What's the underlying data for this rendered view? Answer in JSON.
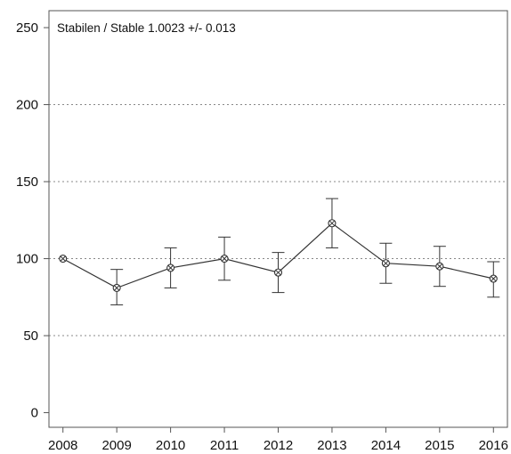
{
  "chart_data": {
    "type": "line",
    "title": "",
    "xlabel": "",
    "ylabel": "",
    "annotation": "Stabilen / Stable  1.0023 +/- 0.013",
    "x": [
      2008,
      2009,
      2010,
      2011,
      2012,
      2013,
      2014,
      2015,
      2016
    ],
    "x_tick_labels": [
      "2008",
      "2009",
      "2010",
      "2011",
      "2012",
      "2013",
      "2014",
      "2015",
      "2016"
    ],
    "y_ticks": [
      0,
      50,
      100,
      150,
      200,
      250
    ],
    "y_tick_labels": [
      "0",
      "50",
      "100",
      "150",
      "200",
      "250"
    ],
    "ylim": [
      0,
      250
    ],
    "grid": "horizontal dotted at 50, 100, 150, 200",
    "series": [
      {
        "values": [
          100,
          81,
          94,
          100,
          91,
          123,
          97,
          95,
          87
        ],
        "lower": [
          100,
          70,
          81,
          86,
          78,
          107,
          84,
          82,
          75
        ],
        "upper": [
          100,
          93,
          107,
          114,
          104,
          139,
          110,
          108,
          98
        ]
      }
    ],
    "colors": {
      "line": "#333333",
      "grid": "#888888",
      "axis": "#555555"
    }
  }
}
